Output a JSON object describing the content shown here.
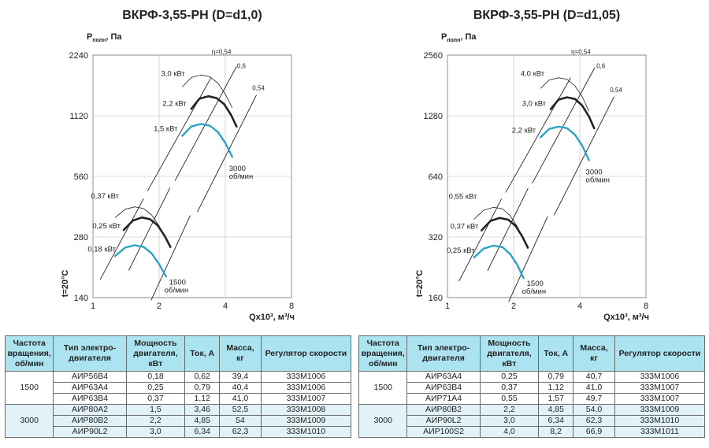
{
  "colors": {
    "accent": "#2aa4c9",
    "header_bg": "#ace3f0",
    "group_bg": "#e1f3f8"
  },
  "chart_data": [
    {
      "type": "line",
      "title": "ВКРФ-3,55-РН (D=d1,0)",
      "ylabel_main": "P",
      "ylabel_sub": "полн",
      "ylabel_unit": ", Па",
      "xlabel": "Qx10³, м³/ч",
      "side_label": "t=20°C",
      "y_scale": "log",
      "x_scale": "log",
      "xlim": [
        1,
        8
      ],
      "ylim": [
        140,
        2240
      ],
      "x_ticks": [
        1,
        2,
        4,
        8
      ],
      "y_ticks": [
        140,
        280,
        560,
        1120,
        2240
      ],
      "grid": true,
      "efficiency_labels": [
        "η=0,54",
        "0,6",
        "0,54"
      ],
      "speed_labels": [
        {
          "line1": "3000",
          "line2": "об/мин"
        },
        {
          "line1": "1500",
          "line2": "об/мин"
        }
      ],
      "power_labels": [
        "3,0 кВт",
        "2,2 кВт",
        "1,5 кВт",
        "0,37 кВт",
        "0,25 кВт",
        "0,18 кВт"
      ],
      "series": [
        {
          "name": "1,5 кВт",
          "rpm": "3000",
          "color": "#2aa4c9",
          "x": [
            2.55,
            2.8,
            3.1,
            3.4,
            3.7,
            4.0,
            4.3
          ],
          "y": [
            890,
            990,
            1020,
            1000,
            930,
            820,
            700
          ]
        },
        {
          "name": "2,2 кВт",
          "rpm": "3000",
          "color": "#222222",
          "x": [
            2.8,
            3.05,
            3.35,
            3.65,
            3.95,
            4.25,
            4.5
          ],
          "y": [
            1210,
            1360,
            1400,
            1370,
            1280,
            1130,
            990
          ]
        },
        {
          "name": "0,18 кВт",
          "rpm": "1500",
          "color": "#2aa4c9",
          "x": [
            1.26,
            1.4,
            1.55,
            1.7,
            1.85,
            2.0,
            2.15
          ],
          "y": [
            225,
            248,
            255,
            250,
            232,
            205,
            178
          ]
        },
        {
          "name": "0,25 кВт",
          "rpm": "1500",
          "color": "#222222",
          "x": [
            1.38,
            1.52,
            1.67,
            1.82,
            1.97,
            2.12,
            2.25
          ],
          "y": [
            303,
            338,
            350,
            343,
            320,
            283,
            250
          ]
        }
      ]
    },
    {
      "type": "line",
      "title": "ВКРФ-3,55-РН (D=d1,05)",
      "ylabel_main": "P",
      "ylabel_sub": "полн",
      "ylabel_unit": ", Па",
      "xlabel": "Qx10³, м³/ч",
      "side_label": "t=20°C",
      "y_scale": "log",
      "x_scale": "log",
      "xlim": [
        1,
        8
      ],
      "ylim": [
        160,
        2560
      ],
      "x_ticks": [
        1,
        2,
        4,
        8
      ],
      "y_ticks": [
        160,
        320,
        640,
        1280,
        2560
      ],
      "grid": true,
      "efficiency_labels": [
        "η=0,54",
        "0,6",
        "0,54"
      ],
      "speed_labels": [
        {
          "line1": "3000",
          "line2": "об/мин"
        },
        {
          "line1": "1500",
          "line2": "об/мин"
        }
      ],
      "power_labels": [
        "4,0 кВт",
        "3,0 кВт",
        "2,2 кВт",
        "0,55 кВт",
        "0,37 кВт",
        "0,25 кВт"
      ],
      "series": [
        {
          "name": "2,2 кВт",
          "rpm": "3000",
          "color": "#2aa4c9",
          "x": [
            2.65,
            2.9,
            3.2,
            3.5,
            3.8,
            4.1,
            4.4
          ],
          "y": [
            1000,
            1100,
            1130,
            1110,
            1030,
            910,
            770
          ]
        },
        {
          "name": "3,0 кВт",
          "rpm": "3000",
          "color": "#222222",
          "x": [
            2.95,
            3.2,
            3.5,
            3.8,
            4.1,
            4.4,
            4.65
          ],
          "y": [
            1380,
            1540,
            1580,
            1550,
            1440,
            1270,
            1110
          ]
        },
        {
          "name": "0,25 кВт",
          "rpm": "1500",
          "color": "#2aa4c9",
          "x": [
            1.32,
            1.46,
            1.62,
            1.78,
            1.93,
            2.08,
            2.22
          ],
          "y": [
            253,
            280,
            290,
            285,
            263,
            232,
            200
          ]
        },
        {
          "name": "0,37 кВт",
          "rpm": "1500",
          "color": "#222222",
          "x": [
            1.43,
            1.57,
            1.73,
            1.89,
            2.04,
            2.19,
            2.32
          ],
          "y": [
            345,
            385,
            398,
            390,
            364,
            322,
            283
          ]
        }
      ]
    }
  ],
  "tables": [
    {
      "headers": [
        "Частота вращения, об/мин",
        "Тип электро-двигателя",
        "Мощность двигателя, кВт",
        "Ток, А",
        "Масса, кг",
        "Регулятор скорости"
      ],
      "groups": [
        {
          "freq": "1500",
          "rows": [
            [
              "АИР56В4",
              "0,18",
              "0,62",
              "39,4",
              "333М1006"
            ],
            [
              "АИР63А4",
              "0,25",
              "0,79",
              "40,4",
              "333М1006"
            ],
            [
              "АИР63В4",
              "0,37",
              "1,12",
              "41,0",
              "333М1007"
            ]
          ]
        },
        {
          "freq": "3000",
          "rows": [
            [
              "АИР80А2",
              "1,5",
              "3,46",
              "52,5",
              "333М1008"
            ],
            [
              "АИР80В2",
              "2,2",
              "4,85",
              "54",
              "333М1009"
            ],
            [
              "АИР90L2",
              "3,0",
              "6,34",
              "62,3",
              "333М1010"
            ]
          ]
        }
      ]
    },
    {
      "headers": [
        "Частота вращения, об/мин",
        "Тип электро-двигателя",
        "Мощность двигателя, кВт",
        "Ток, А",
        "Масса, кг",
        "Регулятор скорости"
      ],
      "groups": [
        {
          "freq": "1500",
          "rows": [
            [
              "АИР63А4",
              "0,25",
              "0,79",
              "40,7",
              "333М1006"
            ],
            [
              "АИР63В4",
              "0,37",
              "1,12",
              "41,0",
              "333М1007"
            ],
            [
              "АИР71А4",
              "0,55",
              "1,57",
              "49,7",
              "333М1007"
            ]
          ]
        },
        {
          "freq": "3000",
          "rows": [
            [
              "АИР80В2",
              "2,2",
              "4,85",
              "54,0",
              "333М1009"
            ],
            [
              "АИР90L2",
              "3,0",
              "6,34",
              "62,3",
              "333М1010"
            ],
            [
              "АИР100S2",
              "4,0",
              "8,2",
              "66,9",
              "333М1011"
            ]
          ]
        }
      ]
    }
  ]
}
